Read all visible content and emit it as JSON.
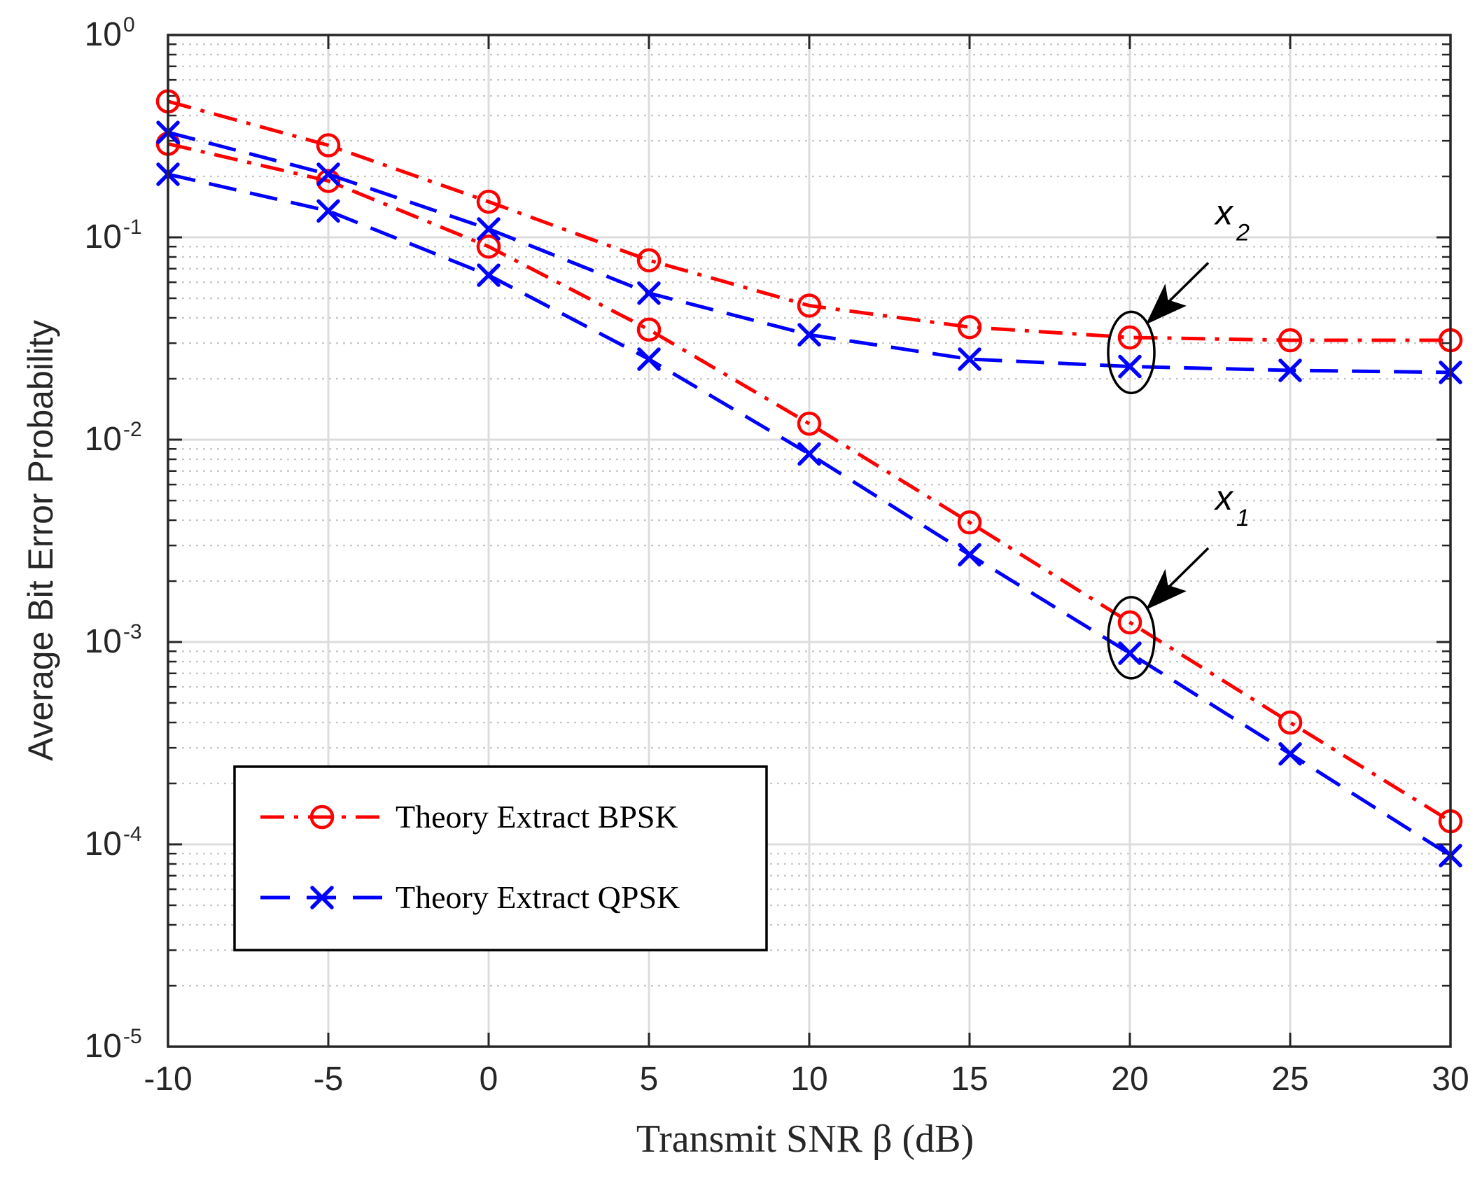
{
  "chart_data": {
    "type": "line",
    "title": "",
    "xlabel": "Transmit SNR β (dB)",
    "ylabel": "Average Bit Error Probability",
    "xlim": [
      -10,
      30
    ],
    "ylim": [
      1e-05,
      1
    ],
    "yscale": "log",
    "grid": true,
    "x_ticks": [
      -10,
      -5,
      0,
      5,
      10,
      15,
      20,
      25,
      30
    ],
    "x_tick_labels": [
      "-10",
      "-5",
      "0",
      "5",
      "10",
      "15",
      "20",
      "25",
      "30"
    ],
    "y_ticks": [
      {
        "value": 1,
        "base": "10",
        "exp": "0"
      },
      {
        "value": 0.1,
        "base": "10",
        "exp": "-1"
      },
      {
        "value": 0.01,
        "base": "10",
        "exp": "-2"
      },
      {
        "value": 0.001,
        "base": "10",
        "exp": "-3"
      },
      {
        "value": 0.0001,
        "base": "10",
        "exp": "-4"
      },
      {
        "value": 1e-05,
        "base": "10",
        "exp": "-5"
      }
    ],
    "x": [
      -10,
      -5,
      0,
      5,
      10,
      15,
      20,
      25,
      30
    ],
    "series": [
      {
        "name": "Theory Extract BPSK",
        "user": "x2",
        "color": "#ff0000",
        "marker": "circle",
        "dash": "dashdot",
        "values": [
          0.47,
          0.285,
          0.15,
          0.077,
          0.046,
          0.036,
          0.032,
          0.031,
          0.031
        ]
      },
      {
        "name": "Theory Extract BPSK",
        "user": "x1",
        "color": "#ff0000",
        "marker": "circle",
        "dash": "dashdot",
        "values": [
          0.29,
          0.19,
          0.09,
          0.035,
          0.012,
          0.0039,
          0.00125,
          0.0004,
          0.00013
        ]
      },
      {
        "name": "Theory Extract QPSK",
        "user": "x2",
        "color": "#0000ff",
        "marker": "x",
        "dash": "dashed",
        "values": [
          0.33,
          0.205,
          0.11,
          0.053,
          0.033,
          0.025,
          0.023,
          0.022,
          0.0215
        ]
      },
      {
        "name": "Theory Extract QPSK",
        "user": "x1",
        "color": "#0000ff",
        "marker": "x",
        "dash": "dashed",
        "values": [
          0.205,
          0.135,
          0.065,
          0.025,
          0.0085,
          0.0027,
          0.00088,
          0.00028,
          8.8e-05
        ]
      }
    ],
    "legend": {
      "position": "lower-left",
      "entries": [
        {
          "label": "Theory Extract BPSK",
          "color": "#ff0000",
          "marker": "circle",
          "dash": "dashdot"
        },
        {
          "label": "Theory Extract QPSK",
          "color": "#0000ff",
          "marker": "x",
          "dash": "dashed"
        }
      ]
    },
    "annotations": [
      {
        "base": "x",
        "sub": "2",
        "target_x": 20,
        "target_y": 0.027
      },
      {
        "base": "x",
        "sub": "1",
        "target_x": 20,
        "target_y": 0.00105
      }
    ]
  }
}
